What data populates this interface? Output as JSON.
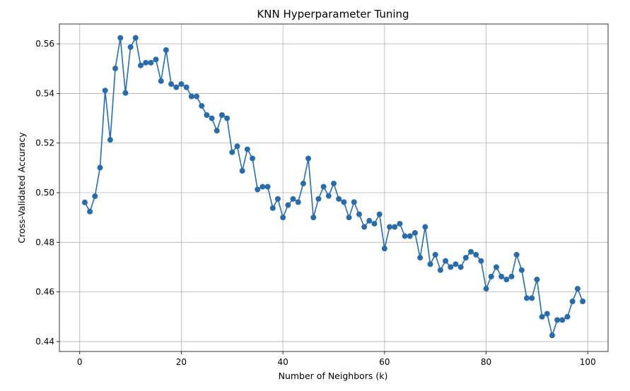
{
  "chart_data": {
    "type": "line",
    "title": "KNN Hyperparameter Tuning",
    "xlabel": "Number of Neighbors (k)",
    "ylabel": "Cross-Validated Accuracy",
    "xlim": [
      -4,
      104
    ],
    "ylim": [
      0.436,
      0.568
    ],
    "xticks": [
      0,
      20,
      40,
      60,
      80,
      100
    ],
    "xtick_labels": [
      "0",
      "20",
      "40",
      "60",
      "80",
      "100"
    ],
    "yticks": [
      0.44,
      0.46,
      0.48,
      0.5,
      0.52,
      0.54,
      0.56
    ],
    "ytick_labels": [
      "0.44",
      "0.46",
      "0.48",
      "0.50",
      "0.52",
      "0.54",
      "0.56"
    ],
    "grid": true,
    "marker": "circle",
    "color": "#2a6ca8",
    "x": [
      1,
      2,
      3,
      4,
      5,
      6,
      7,
      8,
      9,
      10,
      11,
      12,
      13,
      14,
      15,
      16,
      17,
      18,
      19,
      20,
      21,
      22,
      23,
      24,
      25,
      26,
      27,
      28,
      29,
      30,
      31,
      32,
      33,
      34,
      35,
      36,
      37,
      38,
      39,
      40,
      41,
      42,
      43,
      44,
      45,
      46,
      47,
      48,
      49,
      50,
      51,
      52,
      53,
      54,
      55,
      56,
      57,
      58,
      59,
      60,
      61,
      62,
      63,
      64,
      65,
      66,
      67,
      68,
      69,
      70,
      71,
      72,
      73,
      74,
      75,
      76,
      77,
      78,
      79,
      80,
      81,
      82,
      83,
      84,
      85,
      86,
      87,
      88,
      89,
      90,
      91,
      92,
      93,
      94,
      95,
      96,
      97,
      98,
      99
    ],
    "y": [
      0.4961,
      0.4924,
      0.4986,
      0.5101,
      0.5412,
      0.5213,
      0.5501,
      0.5624,
      0.5402,
      0.5587,
      0.5624,
      0.5513,
      0.5524,
      0.5524,
      0.5537,
      0.545,
      0.5575,
      0.5438,
      0.5425,
      0.5438,
      0.5425,
      0.5388,
      0.5388,
      0.535,
      0.5313,
      0.53,
      0.525,
      0.5313,
      0.53,
      0.5163,
      0.5187,
      0.5088,
      0.5175,
      0.5138,
      0.5013,
      0.5024,
      0.5024,
      0.4938,
      0.4975,
      0.49,
      0.495,
      0.4975,
      0.4962,
      0.5037,
      0.5138,
      0.49,
      0.4975,
      0.5024,
      0.4987,
      0.5037,
      0.4975,
      0.4962,
      0.49,
      0.4962,
      0.4913,
      0.4862,
      0.4887,
      0.4875,
      0.4913,
      0.4775,
      0.4862,
      0.4862,
      0.4875,
      0.4825,
      0.4825,
      0.4838,
      0.4738,
      0.4862,
      0.4712,
      0.475,
      0.4688,
      0.4725,
      0.47,
      0.4712,
      0.47,
      0.4738,
      0.4762,
      0.475,
      0.4725,
      0.4613,
      0.4662,
      0.47,
      0.4662,
      0.465,
      0.4662,
      0.475,
      0.4688,
      0.4575,
      0.4575,
      0.465,
      0.45,
      0.4512,
      0.4425,
      0.4487,
      0.4487,
      0.45,
      0.4562,
      0.4613,
      0.4562
    ]
  }
}
